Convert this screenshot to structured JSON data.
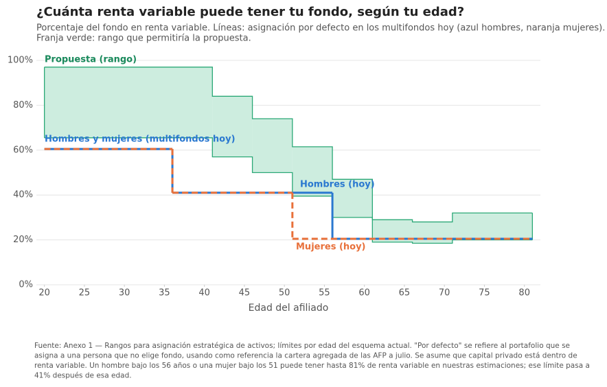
{
  "chart_data": {
    "type": "step",
    "title": "¿Cuánta renta variable puede tener tu fondo, según tu edad?",
    "subtitle": [
      "Porcentaje del fondo en renta variable. Líneas: asignación por defecto en los multifondos hoy (azul hombres, naranja mujeres).",
      "Franja verde: rango que permitiría la propuesta."
    ],
    "xlabel": "Edad del afiliado",
    "xlim": [
      19,
      82
    ],
    "xticks": [
      20,
      25,
      30,
      35,
      40,
      45,
      50,
      55,
      60,
      65,
      70,
      75,
      80
    ],
    "ylim": [
      0,
      100
    ],
    "yticks": [
      {
        "value": 0,
        "label": "0%"
      },
      {
        "value": 20,
        "label": "20%"
      },
      {
        "value": 40,
        "label": "40%"
      },
      {
        "value": 60,
        "label": "60%"
      },
      {
        "value": 80,
        "label": "80%"
      },
      {
        "value": 100,
        "label": "100%"
      }
    ],
    "grid": true,
    "band": {
      "name": "Propuesta (rango)",
      "color": "#2aa876",
      "fill": "#cdeddf",
      "edges": [
        20,
        41,
        46,
        51,
        56,
        61,
        66,
        71,
        81
      ],
      "upper": [
        97,
        84,
        74,
        61.5,
        47,
        29,
        28,
        32
      ],
      "lower": [
        65.5,
        57,
        50,
        39.5,
        30,
        19,
        18.5,
        20
      ]
    },
    "series": [
      {
        "name": "Hombres (hoy)",
        "color": "#2a78d0",
        "dash": false,
        "edges": [
          20,
          36,
          56,
          81
        ],
        "values": [
          60.5,
          41,
          20.5
        ]
      },
      {
        "name": "Mujeres (hoy)",
        "color": "#e8703a",
        "dash": true,
        "edges": [
          20,
          36,
          51,
          81
        ],
        "values": [
          60.5,
          41,
          20.5
        ]
      }
    ],
    "annotations": [
      "Hombres y mujeres (multifondos hoy)"
    ],
    "source": [
      "Fuente: Anexo 1 — Rangos para asignación estratégica de activos; límites por edad del esquema actual. \"Por defecto\" se refiere al portafolio que se",
      "asigna a una persona que no elige fondo, usando como referencia la cartera agregada de las AFP a julio. Se asume que capital privado está dentro de",
      "renta variable. Un hombre bajo los 56 años o una mujer bajo los 51 puede tener hasta 81% de renta variable en nuestras estimaciones; ese límite pasa a",
      "41% después de esa edad."
    ]
  }
}
